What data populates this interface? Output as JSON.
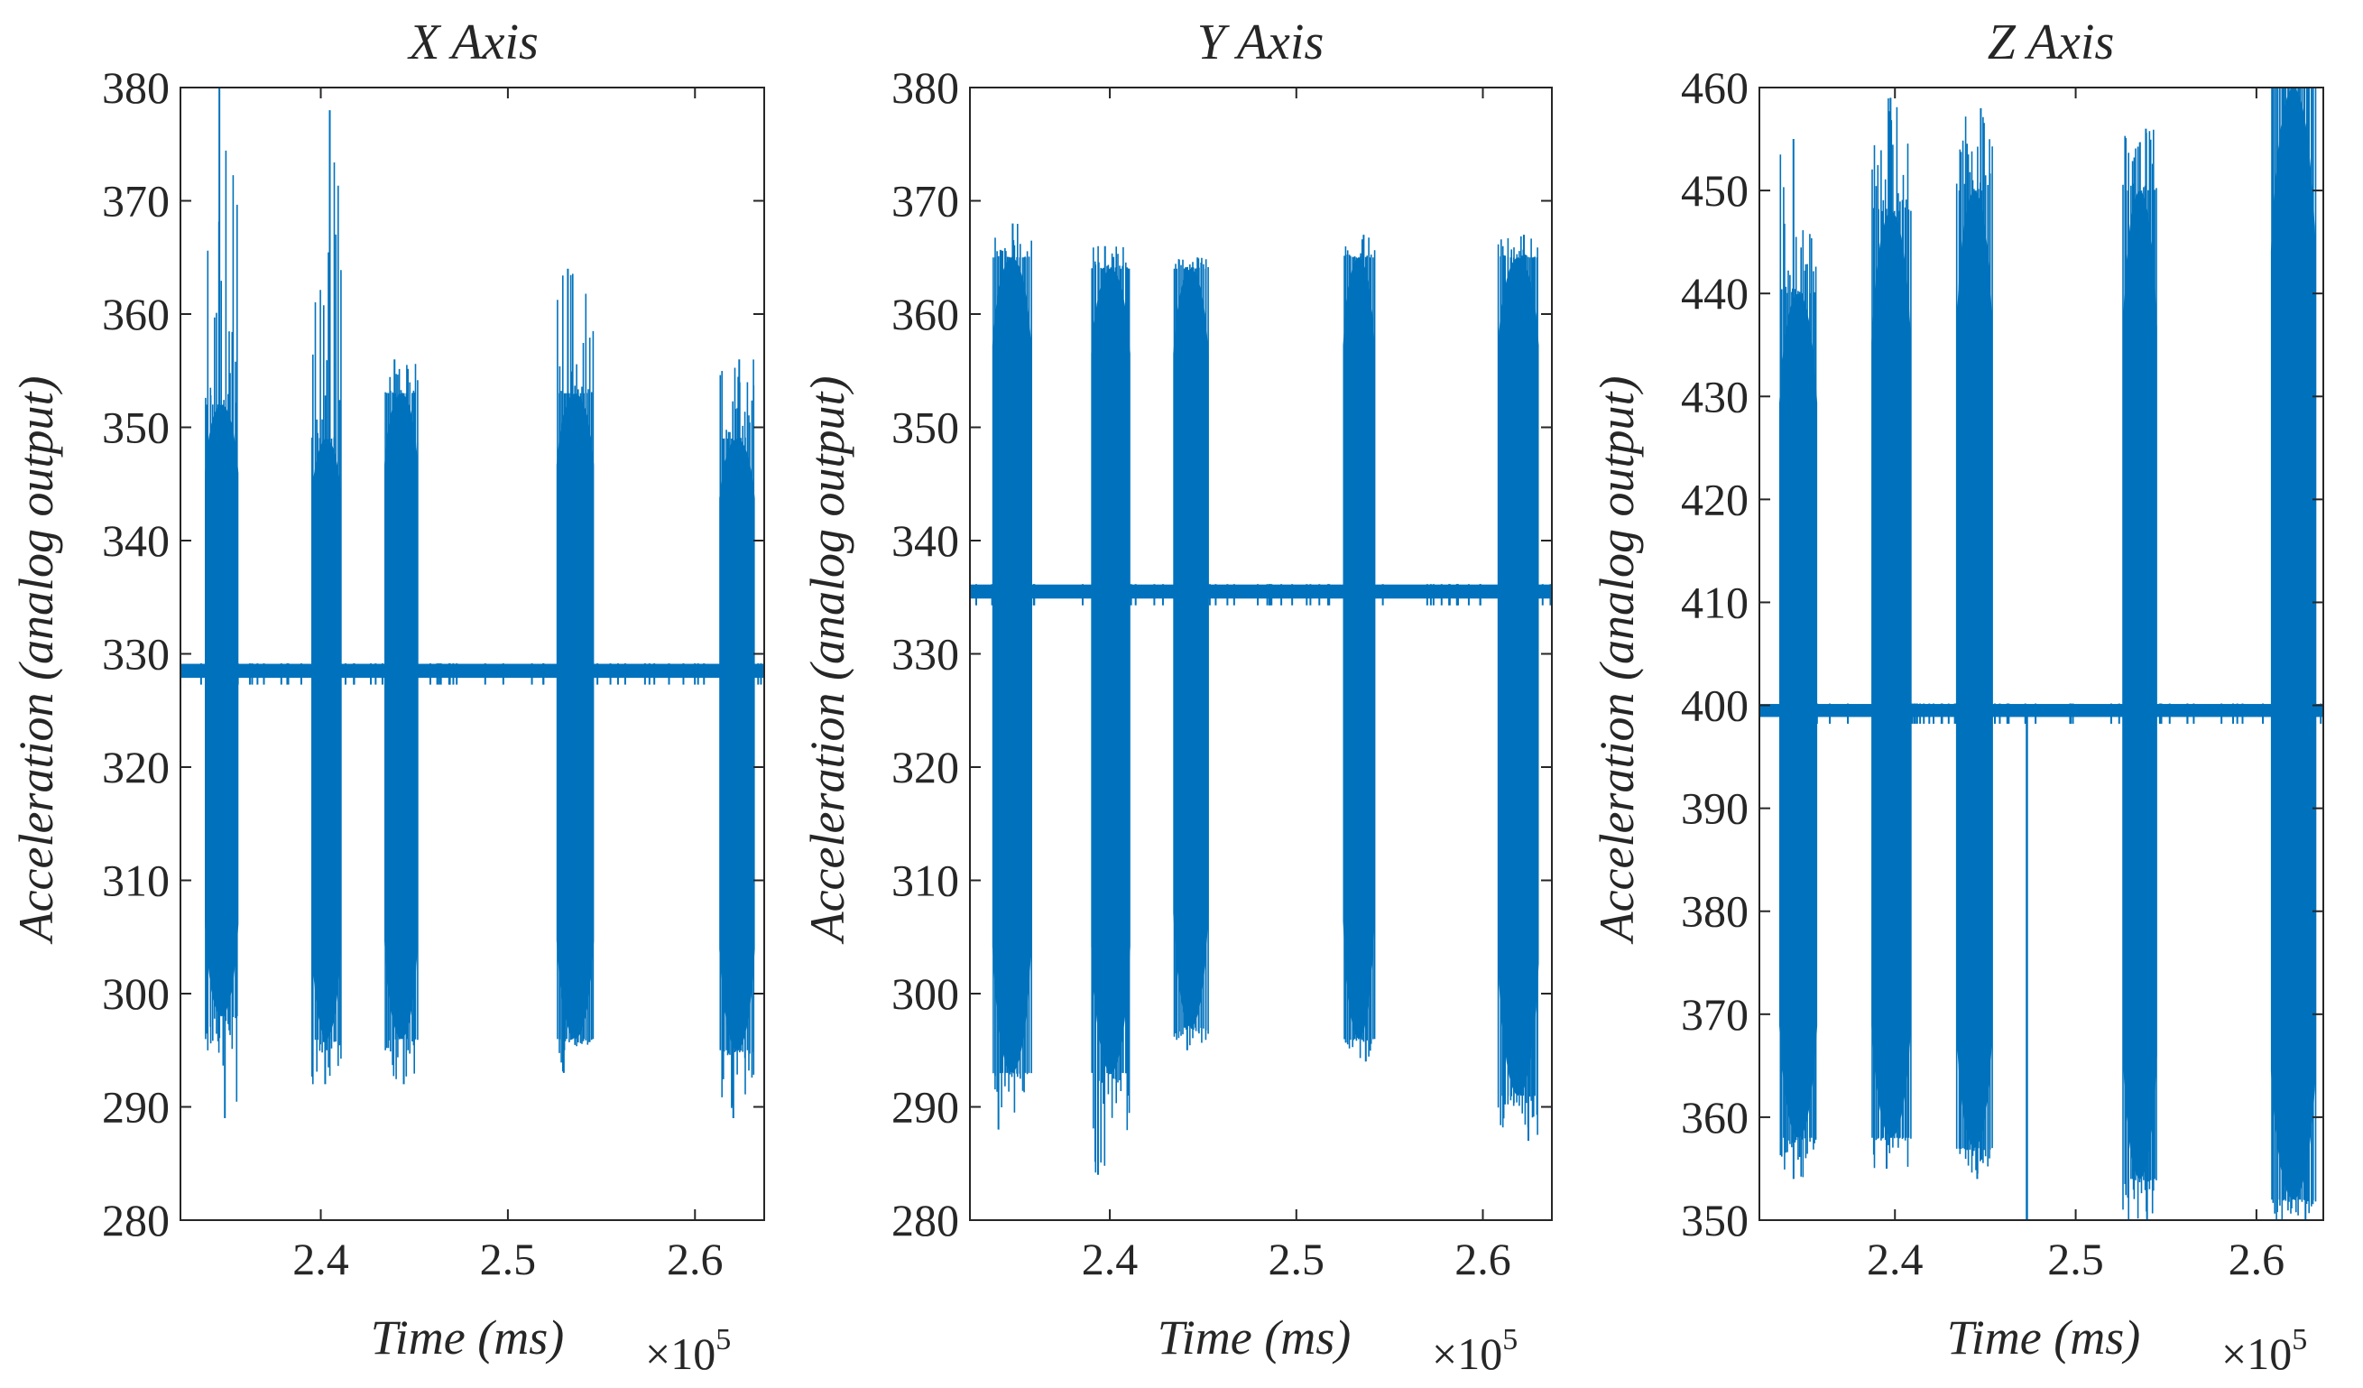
{
  "colors": {
    "signal": "#0072bd",
    "axes": "#262626",
    "background": "#ffffff"
  },
  "chart_data": [
    {
      "type": "line",
      "title": "X Axis",
      "xlabel": "Time (ms)",
      "ylabel": "Acceleration (analog output)",
      "x_exponent_label": "×10",
      "x_exponent_power": "5",
      "xlim": [
        2.325,
        2.637
      ],
      "ylim": [
        280,
        380
      ],
      "xticks": [
        2.4,
        2.5,
        2.6
      ],
      "xtick_labels": [
        "2.4",
        "2.5",
        "2.6"
      ],
      "yticks": [
        280,
        290,
        300,
        310,
        320,
        330,
        340,
        350,
        360,
        370,
        380
      ],
      "ytick_labels": [
        "280",
        "290",
        "300",
        "310",
        "320",
        "330",
        "340",
        "350",
        "360",
        "370",
        "380"
      ],
      "baseline": 329,
      "baseline_noise": [
        328,
        329
      ],
      "bursts": [
        {
          "start": 2.338,
          "end": 2.356,
          "max": 380,
          "min": 289,
          "core_hi": 352,
          "core_lo": 298
        },
        {
          "start": 2.395,
          "end": 2.411,
          "max": 378,
          "min": 292,
          "core_hi": 349,
          "core_lo": 296
        },
        {
          "start": 2.434,
          "end": 2.452,
          "max": 356,
          "min": 292,
          "core_hi": 353,
          "core_lo": 296
        },
        {
          "start": 2.526,
          "end": 2.546,
          "max": 364,
          "min": 293,
          "core_hi": 353,
          "core_lo": 296
        },
        {
          "start": 2.613,
          "end": 2.632,
          "max": 356,
          "min": 289,
          "core_hi": 349,
          "core_lo": 295
        }
      ]
    },
    {
      "type": "line",
      "title": "Y Axis",
      "xlabel": "Time (ms)",
      "ylabel": "Acceleration (analog output)",
      "x_exponent_label": "×10",
      "x_exponent_power": "5",
      "xlim": [
        2.325,
        2.637
      ],
      "ylim": [
        280,
        380
      ],
      "xticks": [
        2.4,
        2.5,
        2.6
      ],
      "xtick_labels": [
        "2.4",
        "2.5",
        "2.6"
      ],
      "yticks": [
        280,
        290,
        300,
        310,
        320,
        330,
        340,
        350,
        360,
        370,
        380
      ],
      "ytick_labels": [
        "280",
        "290",
        "300",
        "310",
        "320",
        "330",
        "340",
        "350",
        "360",
        "370",
        "380"
      ],
      "baseline": 335.5,
      "baseline_noise": [
        335,
        336
      ],
      "bursts": [
        {
          "start": 2.337,
          "end": 2.358,
          "max": 368,
          "min": 288,
          "core_hi": 365,
          "core_lo": 293
        },
        {
          "start": 2.39,
          "end": 2.411,
          "max": 366,
          "min": 284,
          "core_hi": 364,
          "core_lo": 293
        },
        {
          "start": 2.434,
          "end": 2.453,
          "max": 365,
          "min": 295,
          "core_hi": 364,
          "core_lo": 297
        },
        {
          "start": 2.525,
          "end": 2.542,
          "max": 367,
          "min": 294,
          "core_hi": 365,
          "core_lo": 296
        },
        {
          "start": 2.608,
          "end": 2.63,
          "max": 367,
          "min": 287,
          "core_hi": 365,
          "core_lo": 291
        }
      ]
    },
    {
      "type": "line",
      "title": "Z Axis",
      "xlabel": "Time (ms)",
      "ylabel": "Acceleration (analog output)",
      "x_exponent_label": "×10",
      "x_exponent_power": "5",
      "xlim": [
        2.325,
        2.637
      ],
      "ylim": [
        350,
        460
      ],
      "xticks": [
        2.4,
        2.5,
        2.6
      ],
      "xtick_labels": [
        "2.4",
        "2.5",
        "2.6"
      ],
      "yticks": [
        350,
        360,
        370,
        380,
        390,
        400,
        410,
        420,
        430,
        440,
        450,
        460
      ],
      "ytick_labels": [
        "350",
        "360",
        "370",
        "380",
        "390",
        "400",
        "410",
        "420",
        "430",
        "440",
        "450",
        "460"
      ],
      "baseline": 399.5,
      "baseline_noise": [
        399,
        400
      ],
      "spike": {
        "x": 2.473,
        "min": 350,
        "max": 400
      },
      "bursts": [
        {
          "start": 2.336,
          "end": 2.357,
          "max": 455,
          "min": 354,
          "core_hi": 440,
          "core_lo": 358
        },
        {
          "start": 2.387,
          "end": 2.409,
          "max": 459,
          "min": 355,
          "core_hi": 448,
          "core_lo": 358
        },
        {
          "start": 2.434,
          "end": 2.454,
          "max": 458,
          "min": 354,
          "core_hi": 450,
          "core_lo": 357
        },
        {
          "start": 2.526,
          "end": 2.545,
          "max": 456,
          "min": 350,
          "core_hi": 450,
          "core_lo": 354
        },
        {
          "start": 2.608,
          "end": 2.633,
          "max": 460,
          "min": 350,
          "core_hi": 460,
          "core_lo": 352
        }
      ]
    }
  ]
}
